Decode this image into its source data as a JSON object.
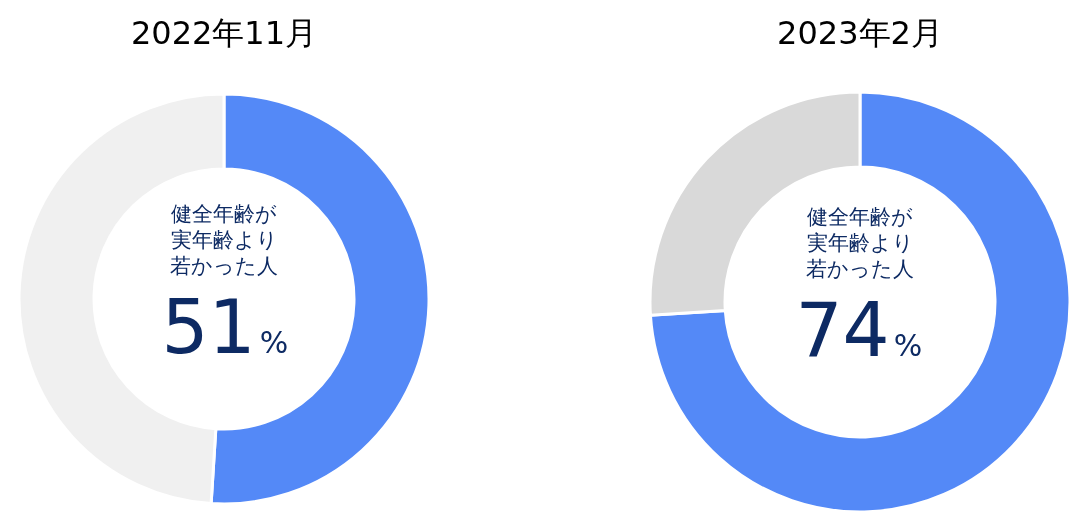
{
  "chart_data": [
    {
      "type": "donut",
      "title": "2022年11月",
      "categories": [
        null,
        null
      ],
      "values": [
        51,
        49
      ],
      "colors": [
        "#5489f7",
        "#f0f0f0"
      ],
      "value_labels": [
        "51%",
        null
      ],
      "annotations": [
        "健全年齢が実年齢より若かった人"
      ]
    },
    {
      "type": "donut",
      "title": "2023年2月",
      "categories": [
        null,
        null
      ],
      "values": [
        74,
        26
      ],
      "colors": [
        "#5489f7",
        "#d9d9d9"
      ],
      "value_labels": [
        "74%",
        null
      ],
      "annotations": [
        "健全年齢が実年齢より若かった人"
      ]
    }
  ]
}
